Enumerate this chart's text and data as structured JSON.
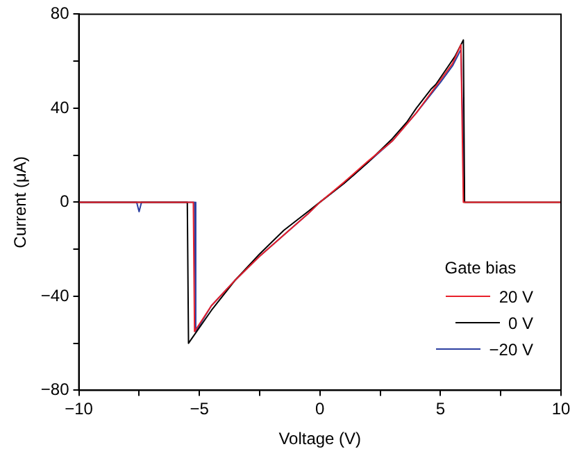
{
  "chart_data": {
    "type": "line",
    "xlabel": "Voltage (V)",
    "ylabel": "Current (μA)",
    "legend_title": "Gate bias",
    "legend": "bottom right",
    "grid": false,
    "marker": "none",
    "line_style": "solid",
    "xlim": [
      -10,
      10
    ],
    "xticks": [
      -10,
      {
        "value": -7.5,
        "label": null
      },
      -5,
      {
        "value": -2.5,
        "label": null
      },
      0,
      {
        "value": 2.5,
        "label": null
      },
      5,
      {
        "value": 7.5,
        "label": null
      },
      10
    ],
    "ylim": [
      -80,
      80
    ],
    "yticks": [
      -80,
      {
        "value": -60,
        "label": null
      },
      -40,
      {
        "value": -20,
        "label": null
      },
      0,
      {
        "value": 20,
        "label": null
      },
      40,
      {
        "value": 60,
        "label": null
      },
      80
    ],
    "series": [
      {
        "name": "20 V",
        "color": "#e8202a",
        "x": [
          -10,
          -8,
          -6,
          -5.3,
          -5.25,
          -5.2,
          -4.5,
          -3.5,
          -2.5,
          -1.5,
          -0.5,
          0,
          1,
          2,
          3,
          4,
          5,
          5.5,
          5.85,
          5.95,
          7,
          8,
          9,
          10
        ],
        "values": [
          0,
          0,
          0,
          0,
          0,
          -55,
          -44,
          -33,
          -23,
          -14,
          -5,
          0,
          8.5,
          17.5,
          26,
          38,
          52,
          59,
          67,
          0,
          0,
          0,
          0,
          0
        ]
      },
      {
        "name": "0 V",
        "color": "#000000",
        "x": [
          -10,
          -8,
          -6,
          -5.5,
          -5.45,
          -4.5,
          -3.5,
          -2.5,
          -1.5,
          -0.5,
          0,
          1,
          2,
          3,
          3.6,
          4,
          4.6,
          4.8,
          5.2,
          5.6,
          5.95,
          6.0,
          7,
          8,
          9,
          10
        ],
        "values": [
          0,
          0,
          0,
          0,
          -60,
          -46,
          -33,
          -22,
          -12,
          -4,
          0,
          8,
          17,
          27,
          34,
          40,
          48,
          50,
          56,
          62,
          69,
          0,
          0,
          0,
          0,
          0
        ]
      },
      {
        "name": "−20 V",
        "color": "#2b3fa0",
        "x": [
          -10,
          -8,
          -7.6,
          -7.5,
          -7.4,
          -6,
          -5.2,
          -5.15,
          -4.5,
          -3.5,
          -2.5,
          -1.5,
          -0.5,
          0,
          1,
          2,
          3,
          4,
          5,
          5.5,
          5.85,
          6.0
        ],
        "values": [
          0,
          0,
          0,
          -4,
          0,
          0,
          0,
          -55,
          -44,
          -33,
          -23,
          -14,
          -5,
          0,
          8,
          17,
          26,
          38,
          51,
          58,
          65,
          0
        ]
      }
    ]
  }
}
